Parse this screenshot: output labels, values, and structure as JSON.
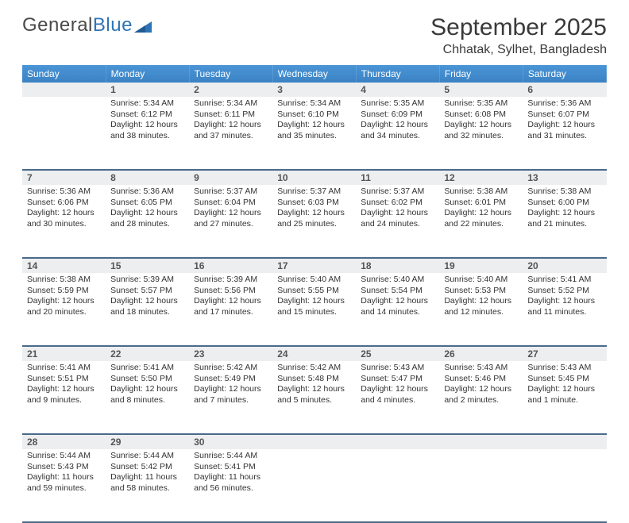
{
  "brand": {
    "part1": "General",
    "part2": "Blue"
  },
  "title": "September 2025",
  "location": "Chhatak, Sylhet, Bangladesh",
  "colors": {
    "header_bg_top": "#4a95d6",
    "header_bg_bottom": "#3b82c4",
    "header_text": "#ffffff",
    "daynum_bg": "#eceef0",
    "daynum_text": "#555555",
    "border": "#4a6a8a",
    "body_text": "#333333",
    "brand_grey": "#4a4a4a",
    "brand_blue": "#2e74b5"
  },
  "fonts": {
    "title_size_pt": 22,
    "location_size_pt": 12,
    "header_size_pt": 9,
    "cell_size_pt": 8
  },
  "dayNames": [
    "Sunday",
    "Monday",
    "Tuesday",
    "Wednesday",
    "Thursday",
    "Friday",
    "Saturday"
  ],
  "weeks": [
    [
      {
        "num": "",
        "lines": []
      },
      {
        "num": "1",
        "lines": [
          "Sunrise: 5:34 AM",
          "Sunset: 6:12 PM",
          "Daylight: 12 hours and 38 minutes."
        ]
      },
      {
        "num": "2",
        "lines": [
          "Sunrise: 5:34 AM",
          "Sunset: 6:11 PM",
          "Daylight: 12 hours and 37 minutes."
        ]
      },
      {
        "num": "3",
        "lines": [
          "Sunrise: 5:34 AM",
          "Sunset: 6:10 PM",
          "Daylight: 12 hours and 35 minutes."
        ]
      },
      {
        "num": "4",
        "lines": [
          "Sunrise: 5:35 AM",
          "Sunset: 6:09 PM",
          "Daylight: 12 hours and 34 minutes."
        ]
      },
      {
        "num": "5",
        "lines": [
          "Sunrise: 5:35 AM",
          "Sunset: 6:08 PM",
          "Daylight: 12 hours and 32 minutes."
        ]
      },
      {
        "num": "6",
        "lines": [
          "Sunrise: 5:36 AM",
          "Sunset: 6:07 PM",
          "Daylight: 12 hours and 31 minutes."
        ]
      }
    ],
    [
      {
        "num": "7",
        "lines": [
          "Sunrise: 5:36 AM",
          "Sunset: 6:06 PM",
          "Daylight: 12 hours and 30 minutes."
        ]
      },
      {
        "num": "8",
        "lines": [
          "Sunrise: 5:36 AM",
          "Sunset: 6:05 PM",
          "Daylight: 12 hours and 28 minutes."
        ]
      },
      {
        "num": "9",
        "lines": [
          "Sunrise: 5:37 AM",
          "Sunset: 6:04 PM",
          "Daylight: 12 hours and 27 minutes."
        ]
      },
      {
        "num": "10",
        "lines": [
          "Sunrise: 5:37 AM",
          "Sunset: 6:03 PM",
          "Daylight: 12 hours and 25 minutes."
        ]
      },
      {
        "num": "11",
        "lines": [
          "Sunrise: 5:37 AM",
          "Sunset: 6:02 PM",
          "Daylight: 12 hours and 24 minutes."
        ]
      },
      {
        "num": "12",
        "lines": [
          "Sunrise: 5:38 AM",
          "Sunset: 6:01 PM",
          "Daylight: 12 hours and 22 minutes."
        ]
      },
      {
        "num": "13",
        "lines": [
          "Sunrise: 5:38 AM",
          "Sunset: 6:00 PM",
          "Daylight: 12 hours and 21 minutes."
        ]
      }
    ],
    [
      {
        "num": "14",
        "lines": [
          "Sunrise: 5:38 AM",
          "Sunset: 5:59 PM",
          "Daylight: 12 hours and 20 minutes."
        ]
      },
      {
        "num": "15",
        "lines": [
          "Sunrise: 5:39 AM",
          "Sunset: 5:57 PM",
          "Daylight: 12 hours and 18 minutes."
        ]
      },
      {
        "num": "16",
        "lines": [
          "Sunrise: 5:39 AM",
          "Sunset: 5:56 PM",
          "Daylight: 12 hours and 17 minutes."
        ]
      },
      {
        "num": "17",
        "lines": [
          "Sunrise: 5:40 AM",
          "Sunset: 5:55 PM",
          "Daylight: 12 hours and 15 minutes."
        ]
      },
      {
        "num": "18",
        "lines": [
          "Sunrise: 5:40 AM",
          "Sunset: 5:54 PM",
          "Daylight: 12 hours and 14 minutes."
        ]
      },
      {
        "num": "19",
        "lines": [
          "Sunrise: 5:40 AM",
          "Sunset: 5:53 PM",
          "Daylight: 12 hours and 12 minutes."
        ]
      },
      {
        "num": "20",
        "lines": [
          "Sunrise: 5:41 AM",
          "Sunset: 5:52 PM",
          "Daylight: 12 hours and 11 minutes."
        ]
      }
    ],
    [
      {
        "num": "21",
        "lines": [
          "Sunrise: 5:41 AM",
          "Sunset: 5:51 PM",
          "Daylight: 12 hours and 9 minutes."
        ]
      },
      {
        "num": "22",
        "lines": [
          "Sunrise: 5:41 AM",
          "Sunset: 5:50 PM",
          "Daylight: 12 hours and 8 minutes."
        ]
      },
      {
        "num": "23",
        "lines": [
          "Sunrise: 5:42 AM",
          "Sunset: 5:49 PM",
          "Daylight: 12 hours and 7 minutes."
        ]
      },
      {
        "num": "24",
        "lines": [
          "Sunrise: 5:42 AM",
          "Sunset: 5:48 PM",
          "Daylight: 12 hours and 5 minutes."
        ]
      },
      {
        "num": "25",
        "lines": [
          "Sunrise: 5:43 AM",
          "Sunset: 5:47 PM",
          "Daylight: 12 hours and 4 minutes."
        ]
      },
      {
        "num": "26",
        "lines": [
          "Sunrise: 5:43 AM",
          "Sunset: 5:46 PM",
          "Daylight: 12 hours and 2 minutes."
        ]
      },
      {
        "num": "27",
        "lines": [
          "Sunrise: 5:43 AM",
          "Sunset: 5:45 PM",
          "Daylight: 12 hours and 1 minute."
        ]
      }
    ],
    [
      {
        "num": "28",
        "lines": [
          "Sunrise: 5:44 AM",
          "Sunset: 5:43 PM",
          "Daylight: 11 hours and 59 minutes."
        ]
      },
      {
        "num": "29",
        "lines": [
          "Sunrise: 5:44 AM",
          "Sunset: 5:42 PM",
          "Daylight: 11 hours and 58 minutes."
        ]
      },
      {
        "num": "30",
        "lines": [
          "Sunrise: 5:44 AM",
          "Sunset: 5:41 PM",
          "Daylight: 11 hours and 56 minutes."
        ]
      },
      {
        "num": "",
        "lines": []
      },
      {
        "num": "",
        "lines": []
      },
      {
        "num": "",
        "lines": []
      },
      {
        "num": "",
        "lines": []
      }
    ]
  ]
}
